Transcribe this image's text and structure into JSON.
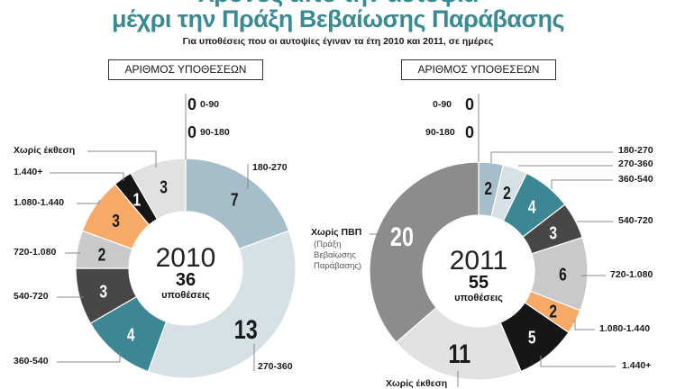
{
  "header": {
    "title_line1": "Χρόνος από την αυτοψία",
    "title_line2": "μέχρι την Πράξη Βεβαίωσης Παράβασης",
    "subtitle": "Για υποθέσεις που οι αυτοψίες έγιναν τα έτη 2010 και 2011, σε ημέρες"
  },
  "colors": {
    "title": "#3a8a96",
    "180-270": "#a5bec9",
    "270-360": "#d6e0e5",
    "360-540": "#3d8694",
    "540-720": "#474747",
    "720-1.080": "#c9c9c9",
    "1.080-1.440": "#f7aa68",
    "1.440+": "#161616",
    "Χωρίς έκθεση": "#e1e1e1",
    "Χωρίς ΠΒΠ": "#8c8c8c"
  },
  "chart_data": [
    {
      "type": "pie",
      "donut": true,
      "box_label": "ΑΡΙΘΜΟΣ ΥΠΟΘΕΣΕΩΝ",
      "center_year": "2010",
      "center_total": "36",
      "center_unit": "υποθέσεις",
      "zero_categories": [
        {
          "label": "0-90",
          "value": 0
        },
        {
          "label": "90-180",
          "value": 0
        }
      ],
      "categories": [
        "180-270",
        "270-360",
        "360-540",
        "540-720",
        "720-1.080",
        "1.080-1.440",
        "1.440+",
        "Χωρίς έκθεση"
      ],
      "values": [
        7,
        13,
        4,
        3,
        2,
        3,
        1,
        3
      ]
    },
    {
      "type": "pie",
      "donut": true,
      "box_label": "ΑΡΙΘΜΟΣ ΥΠΟΘΕΣΕΩΝ",
      "center_year": "2011",
      "center_total": "55",
      "center_unit": "υποθέσεις",
      "zero_categories": [
        {
          "label": "0-90",
          "value": 0
        },
        {
          "label": "90-180",
          "value": 0
        }
      ],
      "categories": [
        "180-270",
        "270-360",
        "360-540",
        "540-720",
        "720-1.080",
        "1.080-1.440",
        "1.440+",
        "Χωρίς έκθεση",
        "Χωρίς ΠΒΠ"
      ],
      "category_notes": {
        "Χωρίς ΠΒΠ": "(Πράξη Βεβαίωσης Παράβασης)"
      },
      "note_lines": [
        "(Πράξη",
        "Βεβαίωσης",
        "Παράβασης)"
      ],
      "values": [
        2,
        2,
        4,
        3,
        6,
        2,
        5,
        11,
        20
      ]
    }
  ]
}
